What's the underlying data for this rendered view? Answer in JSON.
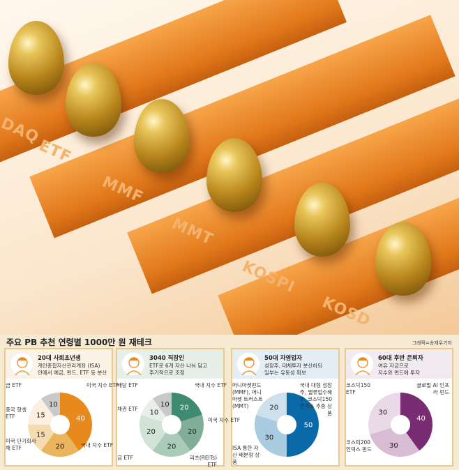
{
  "hero": {
    "bar_labels": [
      "DAQ",
      "ETF",
      "MMF",
      "MMT",
      "KOSPI",
      "KOSD"
    ]
  },
  "title": "주요 PB 추천 연령별 1000만 원 재테크",
  "credit": "그래픽=송재우기자",
  "panels": [
    {
      "title": "20대 사회초년생",
      "desc": [
        "개인종합자산관리계좌 (ISA)",
        "안에서 예금, 펀드, ETF 등 분산"
      ],
      "header_bg": "#fbf3e6",
      "slices": [
        {
          "label": "미국 지수 ETF",
          "value": 40,
          "color": "#e8891e"
        },
        {
          "label": "국내 지수 ETF",
          "value": 20,
          "color": "#e9b45c"
        },
        {
          "label": "미국 단기회사채 ETF",
          "value": 15,
          "color": "#f5dcb0"
        },
        {
          "label": "중국 항셍 ETF",
          "value": 15,
          "color": "#fcefe2"
        },
        {
          "label": "금 ETF",
          "value": 10,
          "color": "#c9c9c9"
        }
      ]
    },
    {
      "title": "3040 직장인",
      "desc": [
        "ETF로 6개 자산 나눠 담고",
        "주기적으로 조정"
      ],
      "header_bg": "#e7efe9",
      "slices": [
        {
          "label": "국내 지수 ETF",
          "value": 20,
          "color": "#3f8a72"
        },
        {
          "label": "미국 지수 ETF",
          "value": 20,
          "color": "#80ae97"
        },
        {
          "label": "리츠(REITs) ETF",
          "value": 20,
          "color": "#a9cbb7"
        },
        {
          "label": "금 ETF",
          "value": 20,
          "color": "#d1e3d7"
        },
        {
          "label": "채권 ETF",
          "value": 10,
          "color": "#e8efea"
        },
        {
          "label": "배당 ETF",
          "value": 10,
          "color": "#c9c9c9"
        }
      ]
    },
    {
      "title": "50대 자영업자",
      "desc": [
        "성장주, 대체투자 분산하되",
        "일부는 유동성 확보"
      ],
      "header_bg": "#e5eef5",
      "slices": [
        {
          "label": "국내 대형 성장주, 밸류업수혜주, 코스닥150 인덱스 추종 상품",
          "value": 50,
          "color": "#0a6aa8"
        },
        {
          "label": "ISA 통한 자산 배분형 상품",
          "value": 30,
          "color": "#a9cbe0"
        },
        {
          "label": "머니마켓펀드(MMF), 머니마켓 트러스트(MMT)",
          "value": 20,
          "color": "#cde0ec"
        }
      ]
    },
    {
      "title": "60대 후반 은퇴자",
      "desc": [
        "여유 자금으로",
        "지수와 펀드에 투자"
      ],
      "header_bg": "#f1ebf0",
      "slices": [
        {
          "label": "글로벌 AI 인프라 펀드",
          "value": 40,
          "color": "#7a2c72"
        },
        {
          "label": "코스피200 인덱스 펀드",
          "value": 30,
          "color": "#d8bcd3"
        },
        {
          "label": "코스닥150 ETF",
          "value": 30,
          "color": "#ead9e6"
        }
      ]
    }
  ]
}
